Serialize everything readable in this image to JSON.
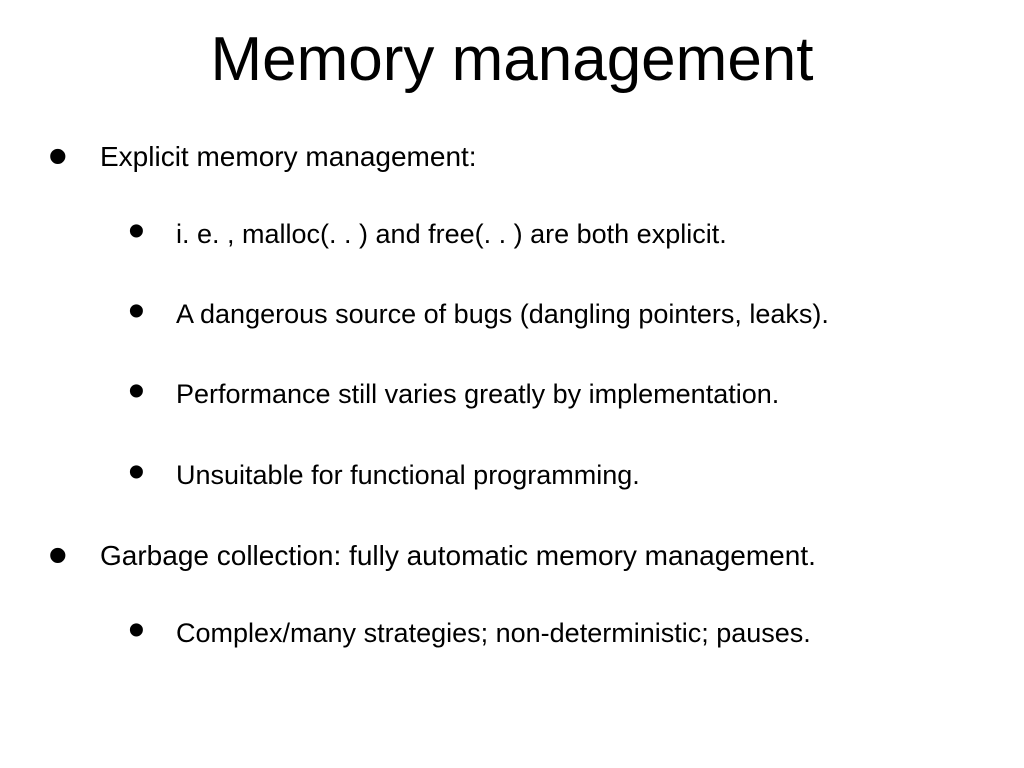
{
  "title": "Memory management",
  "typography": {
    "title_fontsize": 62,
    "body_fontsize": 28,
    "sub_fontsize": 27,
    "font_family": "Arial",
    "text_color": "#000000",
    "background_color": "#ffffff"
  },
  "bullets": [
    {
      "text": "Explicit memory management:",
      "children": [
        "i. e. , malloc(. . ) and free(. . ) are both explicit.",
        "A dangerous source of bugs (dangling pointers, leaks).",
        "Performance still varies greatly by implementation.",
        "Unsuitable for functional programming."
      ]
    },
    {
      "text": "Garbage collection: fully automatic memory management.",
      "children": [
        "Complex/many strategies; non-deterministic; pauses."
      ]
    }
  ]
}
